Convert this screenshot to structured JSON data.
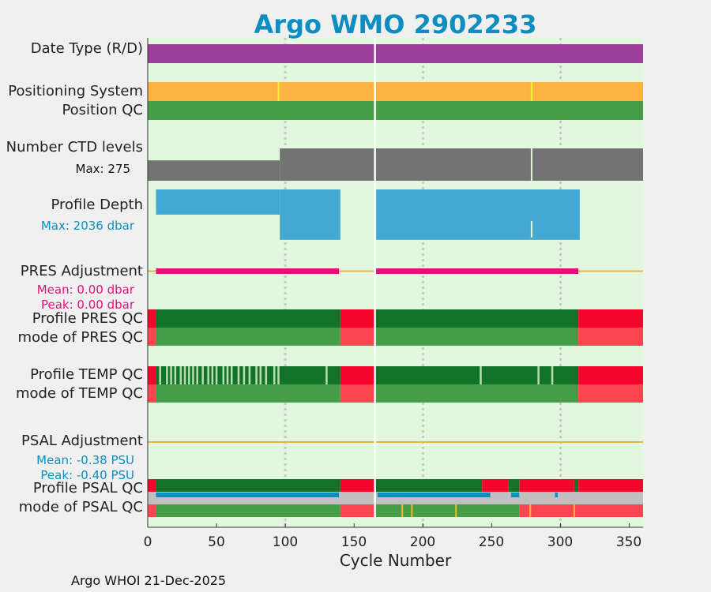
{
  "chart_data": {
    "type": "bar",
    "title": "Argo WMO 2902233",
    "xlabel": "Cycle Number",
    "xlim": [
      0,
      360
    ],
    "xticks": [
      "0",
      "50",
      "100",
      "150",
      "200",
      "250",
      "300",
      "350"
    ],
    "grid_x": [
      100,
      200,
      300
    ],
    "rows": [
      {
        "label": "Date Type (R/D)",
        "segments": [
          {
            "start": 0,
            "end": 360,
            "color": "#9b3f9a"
          }
        ]
      },
      {
        "label": "Positioning System",
        "segments": [
          {
            "start": 0,
            "end": 360,
            "color": "#fdb342"
          }
        ],
        "marks": [
          {
            "x": 95,
            "color": "#f3f03a"
          },
          {
            "x": 279,
            "color": "#f3f03a"
          }
        ]
      },
      {
        "label": "Position QC",
        "segments": [
          {
            "start": 0,
            "end": 360,
            "color": "#489d48"
          }
        ]
      },
      {
        "label": "Number CTD levels",
        "stat_label": "Max: 275",
        "stat_color": "#111111",
        "values_approx": [
          {
            "start": 0,
            "end": 96,
            "value": 145
          },
          {
            "start": 96,
            "end": 360,
            "value": 230
          }
        ],
        "max": 275,
        "color": "#737373",
        "gaps": [
          279
        ]
      },
      {
        "label": "Profile Depth",
        "stat_label": "Max: 2036 dbar",
        "stat_color": "#0c8fc0",
        "values_approx": [
          {
            "start": 6,
            "end": 96,
            "value": 1000
          },
          {
            "start": 96,
            "end": 140,
            "value": 2000
          },
          {
            "start": 166,
            "end": 314,
            "value": 2000
          }
        ],
        "max": 2036,
        "color": "#43a9d2",
        "gaps": [
          279
        ]
      },
      {
        "label": "PRES Adjustment",
        "stat_lines": [
          "Mean: 0.00 dbar",
          "Peak: 0.00 dbar"
        ],
        "stat_color": "#e3117a",
        "mean": 0.0,
        "peak": 0.0,
        "zero_line_color": "#f0b040",
        "segments": [
          {
            "start": 6,
            "end": 139,
            "color": "#e3117a"
          },
          {
            "start": 166,
            "end": 313,
            "color": "#e3117a"
          }
        ]
      },
      {
        "label": "Profile PRES QC",
        "segments": [
          {
            "start": 0,
            "end": 6,
            "color": "#f5042c"
          },
          {
            "start": 6,
            "end": 140,
            "color": "#127328"
          },
          {
            "start": 140,
            "end": 165,
            "color": "#f5042c"
          },
          {
            "start": 165,
            "end": 313,
            "color": "#127328"
          },
          {
            "start": 313,
            "end": 360,
            "color": "#f5042c"
          }
        ]
      },
      {
        "label": "mode of PRES QC",
        "segments": [
          {
            "start": 0,
            "end": 6,
            "color": "#fc4550"
          },
          {
            "start": 6,
            "end": 140,
            "color": "#489d48"
          },
          {
            "start": 140,
            "end": 165,
            "color": "#fc4550"
          },
          {
            "start": 165,
            "end": 313,
            "color": "#489d48"
          },
          {
            "start": 313,
            "end": 360,
            "color": "#fc4550"
          }
        ]
      },
      {
        "label": "Profile TEMP QC",
        "segments": [
          {
            "start": 0,
            "end": 6,
            "color": "#f5042c"
          },
          {
            "start": 6,
            "end": 140,
            "color": "#127328"
          },
          {
            "start": 140,
            "end": 165,
            "color": "#f5042c"
          },
          {
            "start": 165,
            "end": 313,
            "color": "#127328"
          },
          {
            "start": 313,
            "end": 360,
            "color": "#f5042c"
          }
        ],
        "marks_color": "#b7ddb0",
        "marks": [
          9,
          14,
          17,
          20,
          24,
          27,
          30,
          33,
          36,
          40,
          44,
          47,
          50,
          55,
          58,
          61,
          66,
          70,
          74,
          79,
          82,
          86,
          92,
          95,
          130,
          242,
          284,
          294
        ]
      },
      {
        "label": "mode of TEMP QC",
        "segments": [
          {
            "start": 0,
            "end": 6,
            "color": "#fc4550"
          },
          {
            "start": 6,
            "end": 140,
            "color": "#489d48"
          },
          {
            "start": 140,
            "end": 165,
            "color": "#fc4550"
          },
          {
            "start": 165,
            "end": 313,
            "color": "#489d48"
          },
          {
            "start": 313,
            "end": 360,
            "color": "#fc4550"
          }
        ]
      },
      {
        "label": "PSAL Adjustment",
        "stat_lines": [
          "Mean: -0.38 PSU",
          "Peak: -0.40 PSU"
        ],
        "stat_color": "#0c8fc0",
        "mean": -0.38,
        "peak": -0.4,
        "zero_line_color": "#f0b040"
      },
      {
        "label": "Profile PSAL QC",
        "segments": [
          {
            "start": 0,
            "end": 6,
            "color": "#f5042c"
          },
          {
            "start": 6,
            "end": 140,
            "color": "#127328"
          },
          {
            "start": 140,
            "end": 165,
            "color": "#f5042c"
          },
          {
            "start": 165,
            "end": 243,
            "color": "#127328"
          },
          {
            "start": 243,
            "end": 262,
            "color": "#f5042c"
          },
          {
            "start": 262,
            "end": 270,
            "color": "#127328"
          },
          {
            "start": 270,
            "end": 310,
            "color": "#f5042c"
          },
          {
            "start": 310,
            "end": 313,
            "color": "#127328"
          },
          {
            "start": 313,
            "end": 360,
            "color": "#f5042c"
          }
        ]
      },
      {
        "label": "",
        "segments": [
          {
            "start": 0,
            "end": 360,
            "color": "#c0c0c0"
          }
        ],
        "marks_color": "#0c8fc0",
        "marks": [
          {
            "start": 6,
            "end": 139
          },
          {
            "start": 167,
            "end": 249
          },
          {
            "start": 264,
            "end": 270
          },
          {
            "start": 296,
            "end": 298
          }
        ]
      },
      {
        "label": "mode of PSAL QC",
        "segments": [
          {
            "start": 0,
            "end": 6,
            "color": "#fc4550"
          },
          {
            "start": 6,
            "end": 140,
            "color": "#489d48"
          },
          {
            "start": 140,
            "end": 165,
            "color": "#fc4550"
          },
          {
            "start": 165,
            "end": 270,
            "color": "#489d48"
          },
          {
            "start": 270,
            "end": 360,
            "color": "#fc4550"
          }
        ],
        "marks_color": "#f3b632",
        "marks": [
          185,
          192,
          224,
          278,
          310
        ]
      }
    ],
    "gap_cycle": 165,
    "plot_bg": "#e2f8de"
  },
  "footer": "Argo WHOI 21-Dec-2025"
}
